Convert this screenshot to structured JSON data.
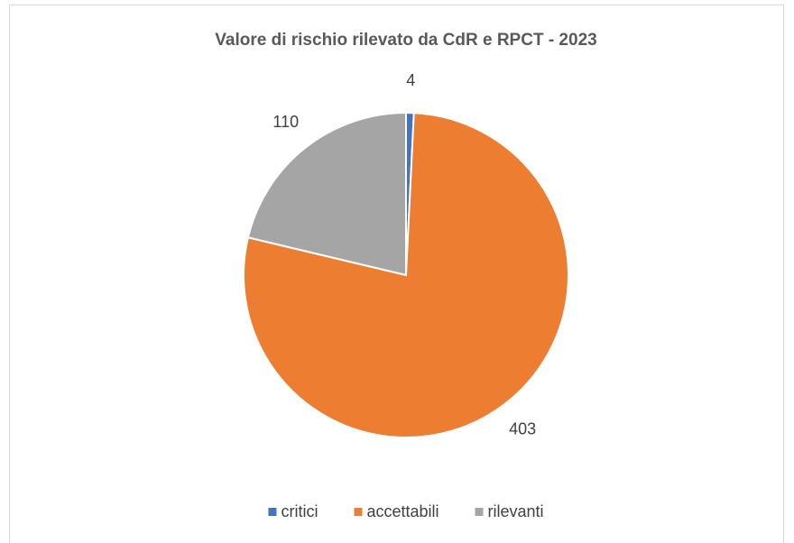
{
  "chart_data": {
    "type": "pie",
    "title": "Valore di rischio rilevato da CdR e RPCT - 2023",
    "categories": [
      "critici",
      "accettabili",
      "rilevanti"
    ],
    "values": [
      4,
      403,
      110
    ],
    "colors": [
      "#4472c4",
      "#ed7d31",
      "#a5a5a5"
    ],
    "legend": "bottom"
  }
}
